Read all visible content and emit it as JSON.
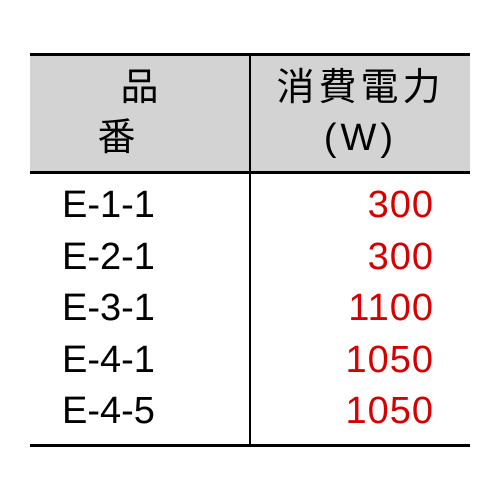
{
  "table": {
    "type": "table",
    "background_color": "#ffffff",
    "header_bg": "#d3d3d3",
    "border_color": "#000000",
    "value_color": "#d60000",
    "model_color": "#000000",
    "font_size_pt": 28,
    "columns": [
      {
        "label": "品番",
        "align": "left"
      },
      {
        "label": "消費電力",
        "unit": "(W)",
        "align": "right"
      }
    ],
    "rows": [
      {
        "model": "E-1-1",
        "value": "300"
      },
      {
        "model": "E-2-1",
        "value": "300"
      },
      {
        "model": "E-3-1",
        "value": "1100"
      },
      {
        "model": "E-4-1",
        "value": "1050"
      },
      {
        "model": "E-4-5",
        "value": "1050"
      }
    ]
  }
}
